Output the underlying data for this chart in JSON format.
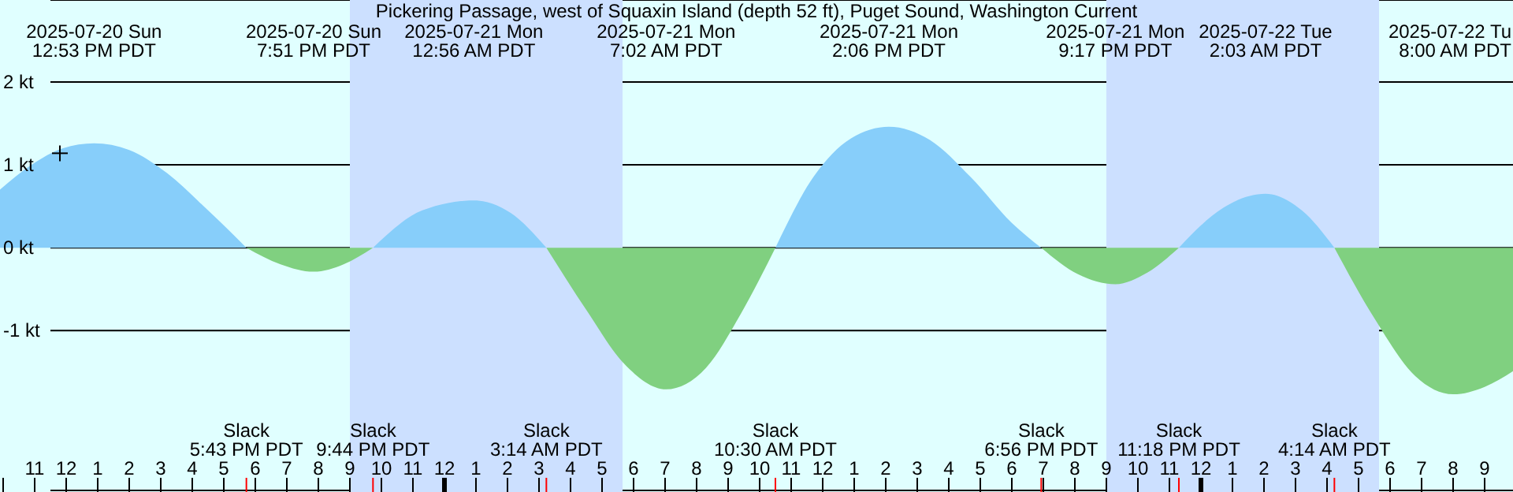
{
  "chart_data": {
    "type": "area",
    "title": "Pickering Passage, west of Squaxin Island (depth 52 ft), Puget Sound, Washington Current",
    "x": [
      "2025-07-20T09:54",
      "2025-07-20T10:54",
      "2025-07-20T11:54",
      "2025-07-20T12:53",
      "2025-07-20T14:00",
      "2025-07-20T15:12",
      "2025-07-20T16:30",
      "2025-07-20T17:43",
      "2025-07-20T18:48",
      "2025-07-20T19:51",
      "2025-07-20T20:48",
      "2025-07-20T21:44",
      "2025-07-20T23:18",
      "2025-07-21T00:56",
      "2025-07-21T02:06",
      "2025-07-21T03:14",
      "2025-07-21T04:30",
      "2025-07-21T05:42",
      "2025-07-21T07:02",
      "2025-07-21T08:18",
      "2025-07-21T09:24",
      "2025-07-21T10:30",
      "2025-07-21T11:42",
      "2025-07-21T12:54",
      "2025-07-21T14:06",
      "2025-07-21T15:24",
      "2025-07-21T16:42",
      "2025-07-21T18:00",
      "2025-07-21T18:56",
      "2025-07-21T20:06",
      "2025-07-21T21:17",
      "2025-07-21T22:18",
      "2025-07-21T23:18",
      "2025-07-22T00:42",
      "2025-07-22T02:03",
      "2025-07-22T03:12",
      "2025-07-22T04:14",
      "2025-07-22T05:30",
      "2025-07-22T06:48",
      "2025-07-22T08:00",
      "2025-07-22T09:00",
      "2025-07-22T09:54"
    ],
    "series": [
      {
        "color": "#87cefa",
        "values": [
          0.7,
          1.0,
          1.2,
          1.26,
          1.18,
          0.9,
          0.45,
          0,
          null,
          null,
          null,
          0,
          0.45,
          0.57,
          0.42,
          0,
          null,
          null,
          null,
          null,
          null,
          0,
          0.85,
          1.32,
          1.46,
          1.3,
          0.85,
          0.3,
          0,
          null,
          null,
          null,
          0,
          0.48,
          0.65,
          0.45,
          0,
          null,
          null,
          null,
          null,
          null
        ]
      },
      {
        "color": "#80d080",
        "values": [
          null,
          null,
          null,
          null,
          null,
          null,
          null,
          0,
          -0.2,
          -0.29,
          -0.2,
          0,
          null,
          null,
          null,
          0,
          -0.75,
          -1.4,
          -1.71,
          -1.45,
          -0.8,
          0,
          null,
          null,
          null,
          null,
          null,
          null,
          0,
          -0.32,
          -0.44,
          -0.3,
          0,
          null,
          null,
          null,
          0,
          -0.85,
          -1.55,
          -1.77,
          -1.68,
          -1.49
        ]
      },
      {
        "type": "scatter",
        "marker": "cross",
        "color": "#000000",
        "x": [
          "2025-07-20T11:48"
        ],
        "values": [
          1.14
        ]
      }
    ],
    "xlim": [
      "2025-07-20T09:54",
      "2025-07-22T09:54"
    ],
    "xticks": [
      {
        "value": "2025-07-20T10:00",
        "label": null
      },
      {
        "value": "2025-07-20T11:00",
        "label": "11"
      },
      {
        "value": "2025-07-20T12:00",
        "label": "12"
      },
      {
        "value": "2025-07-20T13:00",
        "label": "1"
      },
      {
        "value": "2025-07-20T14:00",
        "label": "2"
      },
      {
        "value": "2025-07-20T15:00",
        "label": "3"
      },
      {
        "value": "2025-07-20T16:00",
        "label": "4"
      },
      {
        "value": "2025-07-20T17:00",
        "label": "5"
      },
      {
        "value": "2025-07-20T18:00",
        "label": "6"
      },
      {
        "value": "2025-07-20T19:00",
        "label": "7"
      },
      {
        "value": "2025-07-20T20:00",
        "label": "8"
      },
      {
        "value": "2025-07-20T21:00",
        "label": "9"
      },
      {
        "value": "2025-07-20T22:00",
        "label": "10"
      },
      {
        "value": "2025-07-20T23:00",
        "label": "11"
      },
      {
        "value": "2025-07-21T00:00",
        "label": "12"
      },
      {
        "value": "2025-07-21T01:00",
        "label": "1"
      },
      {
        "value": "2025-07-21T02:00",
        "label": "2"
      },
      {
        "value": "2025-07-21T03:00",
        "label": "3"
      },
      {
        "value": "2025-07-21T04:00",
        "label": "4"
      },
      {
        "value": "2025-07-21T05:00",
        "label": "5"
      },
      {
        "value": "2025-07-21T06:00",
        "label": "6"
      },
      {
        "value": "2025-07-21T07:00",
        "label": "7"
      },
      {
        "value": "2025-07-21T08:00",
        "label": "8"
      },
      {
        "value": "2025-07-21T09:00",
        "label": "9"
      },
      {
        "value": "2025-07-21T10:00",
        "label": "10"
      },
      {
        "value": "2025-07-21T11:00",
        "label": "11"
      },
      {
        "value": "2025-07-21T12:00",
        "label": "12"
      },
      {
        "value": "2025-07-21T13:00",
        "label": "1"
      },
      {
        "value": "2025-07-21T14:00",
        "label": "2"
      },
      {
        "value": "2025-07-21T15:00",
        "label": "3"
      },
      {
        "value": "2025-07-21T16:00",
        "label": "4"
      },
      {
        "value": "2025-07-21T17:00",
        "label": "5"
      },
      {
        "value": "2025-07-21T18:00",
        "label": "6"
      },
      {
        "value": "2025-07-21T19:00",
        "label": "7"
      },
      {
        "value": "2025-07-21T20:00",
        "label": "8"
      },
      {
        "value": "2025-07-21T21:00",
        "label": "9"
      },
      {
        "value": "2025-07-21T22:00",
        "label": "10"
      },
      {
        "value": "2025-07-21T23:00",
        "label": "11"
      },
      {
        "value": "2025-07-22T00:00",
        "label": "12"
      },
      {
        "value": "2025-07-22T01:00",
        "label": "1"
      },
      {
        "value": "2025-07-22T02:00",
        "label": "2"
      },
      {
        "value": "2025-07-22T03:00",
        "label": "3"
      },
      {
        "value": "2025-07-22T04:00",
        "label": "4"
      },
      {
        "value": "2025-07-22T05:00",
        "label": "5"
      },
      {
        "value": "2025-07-22T06:00",
        "label": "6"
      },
      {
        "value": "2025-07-22T07:00",
        "label": "7"
      },
      {
        "value": "2025-07-22T08:00",
        "label": "8"
      },
      {
        "value": "2025-07-22T09:00",
        "label": "9"
      }
    ],
    "ylim": [
      -2.93,
      2.99
    ],
    "yticks": [
      {
        "value": 2,
        "label": "2 kt"
      },
      {
        "value": 1,
        "label": "1 kt"
      },
      {
        "value": 0,
        "label": "0 kt"
      },
      {
        "value": -1,
        "label": "-1 kt"
      }
    ],
    "grid": "y",
    "bands": [
      {
        "axis": "x",
        "from": "2025-07-20T21:00",
        "to": "2025-07-21T05:39",
        "color": "#cce0ff"
      },
      {
        "axis": "x",
        "from": "2025-07-21T21:00",
        "to": "2025-07-22T05:39",
        "color": "#cce0ff"
      }
    ],
    "annotations": [
      "2025-07-20 Sun\n12:53 PM PDT",
      "2025-07-20 Sun\n7:51 PM PDT",
      "2025-07-21 Mon\n12:56 AM PDT",
      "2025-07-21 Mon\n7:02 AM PDT",
      "2025-07-21 Mon\n2:06 PM PDT",
      "2025-07-21 Mon\n9:17 PM PDT",
      "2025-07-22 Tue\n2:03 AM PDT",
      "2025-07-22 Tu\n8:00 AM PDT",
      "Slack\n5:43 PM PDT",
      "Slack\n9:44 PM PDT",
      "Slack\n3:14 AM PDT",
      "Slack\n10:30 AM PDT",
      "Slack\n6:56 PM PDT",
      "Slack\n11:18 PM PDT",
      "Slack\n4:14 AM PDT"
    ]
  }
}
